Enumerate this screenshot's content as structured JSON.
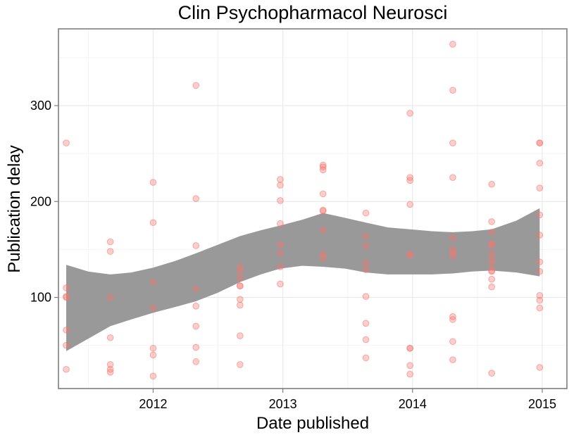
{
  "chart_data": {
    "type": "scatter",
    "title": "Clin Psychopharmacol Neurosci",
    "xlabel": "Date published",
    "ylabel": "Publication delay",
    "x_ticks": [
      2012,
      2013,
      2014,
      2015
    ],
    "y_ticks": [
      100,
      200,
      300
    ],
    "xlim": [
      2011.27,
      2015.19
    ],
    "ylim": [
      5,
      380
    ],
    "grid": true,
    "point_color": "#f8766d",
    "band_color": "#999999",
    "points": [
      {
        "x": 2011.33,
        "y": 261
      },
      {
        "x": 2011.33,
        "y": 110
      },
      {
        "x": 2011.33,
        "y": 101
      },
      {
        "x": 2011.33,
        "y": 100
      },
      {
        "x": 2011.33,
        "y": 66
      },
      {
        "x": 2011.33,
        "y": 50
      },
      {
        "x": 2011.33,
        "y": 25
      },
      {
        "x": 2011.67,
        "y": 158
      },
      {
        "x": 2011.67,
        "y": 148
      },
      {
        "x": 2011.67,
        "y": 100
      },
      {
        "x": 2011.67,
        "y": 58
      },
      {
        "x": 2011.67,
        "y": 30
      },
      {
        "x": 2011.67,
        "y": 25
      },
      {
        "x": 2011.67,
        "y": 22
      },
      {
        "x": 2012.0,
        "y": 220
      },
      {
        "x": 2012.0,
        "y": 178
      },
      {
        "x": 2012.0,
        "y": 116
      },
      {
        "x": 2012.0,
        "y": 89
      },
      {
        "x": 2012.0,
        "y": 47
      },
      {
        "x": 2012.0,
        "y": 40
      },
      {
        "x": 2012.0,
        "y": 18
      },
      {
        "x": 2012.33,
        "y": 321
      },
      {
        "x": 2012.33,
        "y": 203
      },
      {
        "x": 2012.33,
        "y": 154
      },
      {
        "x": 2012.33,
        "y": 109
      },
      {
        "x": 2012.33,
        "y": 91
      },
      {
        "x": 2012.33,
        "y": 70
      },
      {
        "x": 2012.33,
        "y": 48
      },
      {
        "x": 2012.33,
        "y": 33
      },
      {
        "x": 2012.67,
        "y": 132
      },
      {
        "x": 2012.67,
        "y": 127
      },
      {
        "x": 2012.67,
        "y": 120
      },
      {
        "x": 2012.67,
        "y": 112
      },
      {
        "x": 2012.67,
        "y": 112
      },
      {
        "x": 2012.67,
        "y": 98
      },
      {
        "x": 2012.67,
        "y": 92
      },
      {
        "x": 2012.67,
        "y": 60
      },
      {
        "x": 2012.67,
        "y": 30
      },
      {
        "x": 2012.98,
        "y": 223
      },
      {
        "x": 2012.98,
        "y": 217
      },
      {
        "x": 2012.98,
        "y": 201
      },
      {
        "x": 2012.98,
        "y": 177
      },
      {
        "x": 2012.98,
        "y": 155
      },
      {
        "x": 2012.98,
        "y": 146
      },
      {
        "x": 2012.98,
        "y": 132
      },
      {
        "x": 2012.98,
        "y": 114
      },
      {
        "x": 2013.31,
        "y": 238
      },
      {
        "x": 2013.31,
        "y": 236
      },
      {
        "x": 2013.31,
        "y": 233
      },
      {
        "x": 2013.31,
        "y": 208
      },
      {
        "x": 2013.31,
        "y": 191
      },
      {
        "x": 2013.31,
        "y": 190
      },
      {
        "x": 2013.31,
        "y": 170
      },
      {
        "x": 2013.31,
        "y": 145
      },
      {
        "x": 2013.31,
        "y": 141
      },
      {
        "x": 2013.64,
        "y": 188
      },
      {
        "x": 2013.64,
        "y": 164
      },
      {
        "x": 2013.64,
        "y": 154
      },
      {
        "x": 2013.64,
        "y": 136
      },
      {
        "x": 2013.64,
        "y": 129
      },
      {
        "x": 2013.64,
        "y": 101
      },
      {
        "x": 2013.64,
        "y": 73
      },
      {
        "x": 2013.64,
        "y": 56
      },
      {
        "x": 2013.64,
        "y": 37
      },
      {
        "x": 2013.98,
        "y": 292
      },
      {
        "x": 2013.98,
        "y": 225
      },
      {
        "x": 2013.98,
        "y": 222
      },
      {
        "x": 2013.98,
        "y": 197
      },
      {
        "x": 2013.98,
        "y": 145
      },
      {
        "x": 2013.98,
        "y": 144
      },
      {
        "x": 2013.98,
        "y": 47
      },
      {
        "x": 2013.98,
        "y": 47
      },
      {
        "x": 2013.98,
        "y": 29
      },
      {
        "x": 2013.98,
        "y": 20
      },
      {
        "x": 2014.31,
        "y": 364
      },
      {
        "x": 2014.31,
        "y": 316
      },
      {
        "x": 2014.31,
        "y": 261
      },
      {
        "x": 2014.31,
        "y": 225
      },
      {
        "x": 2014.31,
        "y": 162
      },
      {
        "x": 2014.31,
        "y": 150
      },
      {
        "x": 2014.31,
        "y": 147
      },
      {
        "x": 2014.31,
        "y": 143
      },
      {
        "x": 2014.31,
        "y": 80
      },
      {
        "x": 2014.31,
        "y": 77
      },
      {
        "x": 2014.31,
        "y": 54
      },
      {
        "x": 2014.31,
        "y": 35
      },
      {
        "x": 2014.61,
        "y": 218
      },
      {
        "x": 2014.61,
        "y": 179
      },
      {
        "x": 2014.61,
        "y": 168
      },
      {
        "x": 2014.61,
        "y": 156
      },
      {
        "x": 2014.61,
        "y": 155
      },
      {
        "x": 2014.61,
        "y": 146
      },
      {
        "x": 2014.61,
        "y": 140
      },
      {
        "x": 2014.61,
        "y": 135
      },
      {
        "x": 2014.61,
        "y": 128
      },
      {
        "x": 2014.61,
        "y": 127
      },
      {
        "x": 2014.61,
        "y": 119
      },
      {
        "x": 2014.61,
        "y": 111
      },
      {
        "x": 2014.61,
        "y": 21
      },
      {
        "x": 2014.98,
        "y": 261
      },
      {
        "x": 2014.98,
        "y": 261
      },
      {
        "x": 2014.98,
        "y": 240
      },
      {
        "x": 2014.98,
        "y": 214
      },
      {
        "x": 2014.98,
        "y": 186
      },
      {
        "x": 2014.98,
        "y": 165
      },
      {
        "x": 2014.98,
        "y": 137
      },
      {
        "x": 2014.98,
        "y": 127
      },
      {
        "x": 2014.98,
        "y": 102
      },
      {
        "x": 2014.98,
        "y": 97
      },
      {
        "x": 2014.98,
        "y": 89
      },
      {
        "x": 2014.98,
        "y": 27
      }
    ],
    "smooth_band": [
      {
        "x": 2011.33,
        "lower": 44,
        "upper": 134
      },
      {
        "x": 2011.5,
        "lower": 57,
        "upper": 127
      },
      {
        "x": 2011.67,
        "lower": 70,
        "upper": 124
      },
      {
        "x": 2011.83,
        "lower": 77,
        "upper": 126
      },
      {
        "x": 2012.0,
        "lower": 84,
        "upper": 131
      },
      {
        "x": 2012.17,
        "lower": 90,
        "upper": 138
      },
      {
        "x": 2012.33,
        "lower": 96,
        "upper": 146
      },
      {
        "x": 2012.5,
        "lower": 105,
        "upper": 155
      },
      {
        "x": 2012.67,
        "lower": 116,
        "upper": 164
      },
      {
        "x": 2012.83,
        "lower": 124,
        "upper": 170
      },
      {
        "x": 2012.98,
        "lower": 130,
        "upper": 175
      },
      {
        "x": 2013.15,
        "lower": 133,
        "upper": 181
      },
      {
        "x": 2013.31,
        "lower": 132,
        "upper": 188
      },
      {
        "x": 2013.48,
        "lower": 130,
        "upper": 183
      },
      {
        "x": 2013.64,
        "lower": 126,
        "upper": 178
      },
      {
        "x": 2013.81,
        "lower": 124,
        "upper": 173
      },
      {
        "x": 2013.98,
        "lower": 124,
        "upper": 171
      },
      {
        "x": 2014.15,
        "lower": 124,
        "upper": 169
      },
      {
        "x": 2014.31,
        "lower": 125,
        "upper": 168
      },
      {
        "x": 2014.46,
        "lower": 127,
        "upper": 169
      },
      {
        "x": 2014.61,
        "lower": 128,
        "upper": 171
      },
      {
        "x": 2014.8,
        "lower": 126,
        "upper": 180
      },
      {
        "x": 2014.98,
        "lower": 122,
        "upper": 193
      }
    ]
  }
}
